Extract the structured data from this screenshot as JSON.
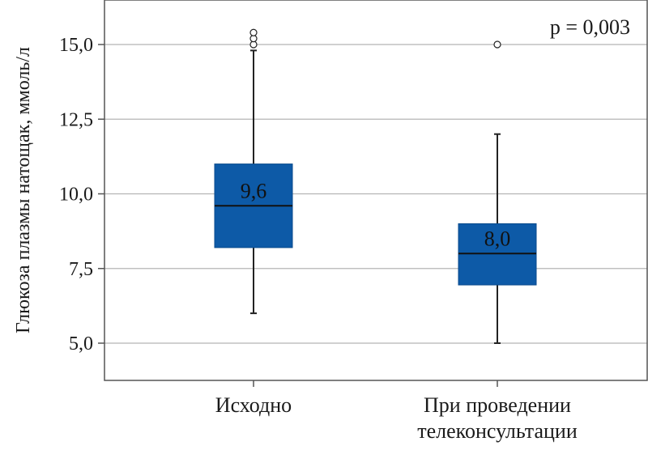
{
  "chart_data": {
    "type": "boxplot",
    "ylabel": "Глюкоза плазмы натощак, ммоль/л",
    "ylim": [
      4.0,
      16.5
    ],
    "yticks": [
      5.0,
      7.5,
      10.0,
      12.5,
      15.0
    ],
    "ytick_labels": [
      "5,0",
      "7,5",
      "10,0",
      "12,5",
      "15,0"
    ],
    "grid": true,
    "annotation": "p = 0,003",
    "box_color": "#0d5aa7",
    "categories": [
      {
        "label_lines": [
          "Исходно"
        ],
        "min": 6.0,
        "q1": 8.2,
        "median": 9.6,
        "q3": 11.0,
        "max": 14.8,
        "median_label": "9,6",
        "outliers": [
          15.0,
          15.2,
          15.4
        ]
      },
      {
        "label_lines": [
          "При проведении",
          "телеконсультации"
        ],
        "min": 5.0,
        "q1": 6.95,
        "median": 8.0,
        "q3": 9.0,
        "max": 12.0,
        "median_label": "8,0",
        "outliers": [
          15.0
        ]
      }
    ]
  }
}
